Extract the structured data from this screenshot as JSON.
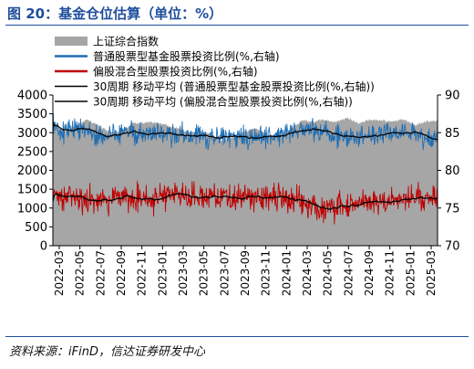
{
  "title": "图 20：基金仓位估算（单位：%）",
  "source": "资料来源：iFinD，信达证券研发中心",
  "chart_data": {
    "type": "area+line",
    "start": "2022-03",
    "end": "2025-05",
    "x_ticks": [
      "2022-03",
      "2022-05",
      "2022-07",
      "2022-09",
      "2022-11",
      "2023-01",
      "2023-03",
      "2023-05",
      "2023-07",
      "2023-09",
      "2023-11",
      "2024-01",
      "2024-03",
      "2024-05",
      "2024-07",
      "2024-09",
      "2024-11",
      "2025-01",
      "2025-03"
    ],
    "y_left": {
      "range": [
        0,
        4000
      ],
      "ticks": [
        0,
        500,
        1000,
        1500,
        2000,
        2500,
        3000,
        3500,
        4000
      ]
    },
    "y_right": {
      "range": [
        70,
        90
      ],
      "ticks": [
        70,
        75,
        80,
        85,
        90
      ]
    },
    "legend_position": "top",
    "series": [
      {
        "name": "上证综合指数",
        "type": "area",
        "axis": "left",
        "color": "#a6a6a6",
        "monthly_values": [
          3250,
          3050,
          3180,
          3350,
          3190,
          3020,
          2990,
          3240,
          3280,
          3270,
          3200,
          3110,
          3000,
          3040,
          2950,
          2780,
          2900,
          3050,
          3100,
          2950,
          2880,
          3100,
          3320,
          3290,
          3350,
          3280,
          3400,
          3250,
          3350,
          3320,
          3300,
          3360,
          3200,
          3300,
          3320
        ]
      },
      {
        "name": "普通股票型基金股票投资比例(%,右轴)",
        "type": "line",
        "axis": "right",
        "color": "#1f6fb5",
        "monthly_values": [
          85.5,
          85.2,
          85.5,
          85.1,
          84.7,
          84.9,
          85.3,
          85.1,
          84.9,
          84.8,
          84.7,
          84.5,
          84.6,
          84.5,
          84.4,
          84.5,
          84.6,
          84.3,
          84.5,
          84.7,
          84.9,
          85.2,
          85.3,
          85.0,
          84.8,
          84.6,
          84.4,
          84.3,
          84.6,
          84.9,
          85.1,
          85.0,
          84.8,
          84.6,
          84.4
        ]
      },
      {
        "name": "偏股混合型股票投资比例(%,右轴)",
        "type": "line",
        "axis": "right",
        "color": "#c00000",
        "monthly_values": [
          76.4,
          76.5,
          76.3,
          76.1,
          76.0,
          76.2,
          76.6,
          76.5,
          76.4,
          76.3,
          76.6,
          77.0,
          76.7,
          76.5,
          76.6,
          76.4,
          76.5,
          76.3,
          76.4,
          76.5,
          76.3,
          76.0,
          75.8,
          75.3,
          75.0,
          75.2,
          75.5,
          75.8,
          75.7,
          75.9,
          76.1,
          76.3,
          76.2,
          76.4,
          76.3
        ]
      },
      {
        "name": "30周期 移动平均 (普通股票型基金股票投资比例(%,右轴))",
        "type": "line",
        "axis": "right",
        "color": "#000000"
      },
      {
        "name": "30周期 移动平均 (偏股混合型股票投资比例(%,右轴))",
        "type": "line",
        "axis": "right",
        "color": "#000000"
      }
    ]
  }
}
